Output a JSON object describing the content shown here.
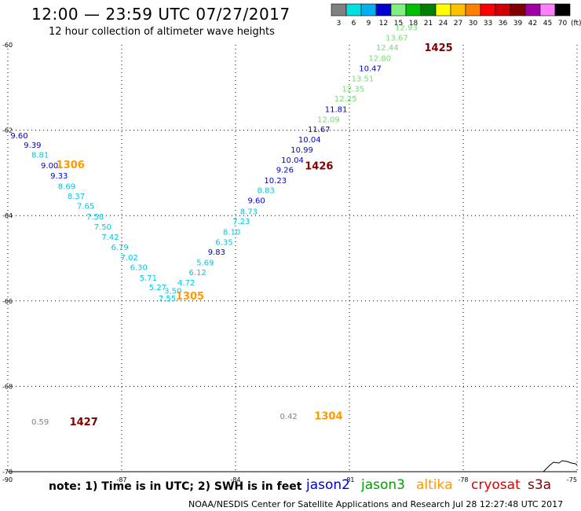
{
  "header": {
    "title": "12:00 — 23:59 UTC 07/27/2017",
    "subtitle": "12 hour collection of altimeter wave heights"
  },
  "color_scale": {
    "labels": [
      "3",
      "6",
      "9",
      "12",
      "15",
      "18",
      "21",
      "24",
      "27",
      "30",
      "33",
      "36",
      "39",
      "42",
      "45",
      "70"
    ],
    "colors": [
      "#808080",
      "#00e0e0",
      "#00b0f0",
      "#0000d0",
      "#80f080",
      "#00c000",
      "#008000",
      "#ffff00",
      "#ffc000",
      "#ff8000",
      "#ff0000",
      "#d00000",
      "#800000",
      "#a000a0",
      "#ff80ff",
      "#000000"
    ],
    "unit": "(ft)"
  },
  "footer": {
    "note": "note: 1) Time is in UTC; 2) SWH is in feet",
    "credit": "NOAA/NESDIS Center for Satellite Applications and Research    Jul 28 12:27:48 UTC 2017",
    "satellites": [
      {
        "name": "jason2",
        "color": "#0000d0"
      },
      {
        "name": "jason3",
        "color": "#00a000"
      },
      {
        "name": "altika",
        "color": "#ff9900"
      },
      {
        "name": "cryosat",
        "color": "#e00000"
      },
      {
        "name": "s3a",
        "color": "#800000"
      }
    ]
  },
  "chart_data": {
    "type": "scatter",
    "title": "12:00 — 23:59 UTC 07/27/2017",
    "subtitle": "12 hour collection of altimeter wave heights",
    "xlabel": "",
    "ylabel": "",
    "xlim": [
      -90,
      -75
    ],
    "ylim": [
      -70,
      -60
    ],
    "xticks": [
      -90,
      -87,
      -84,
      -81,
      -78,
      -75
    ],
    "yticks": [
      -60,
      -62,
      -64,
      -66,
      -68,
      -70
    ],
    "xtick_labels": [
      "-90",
      "-87",
      "-84",
      "-81",
      "-78",
      "-75"
    ],
    "ytick_labels": [
      "-60",
      "-62",
      "-64",
      "-66",
      "-68",
      "-70"
    ],
    "grid": true,
    "colors": {
      "gray": "#808080",
      "cyan": "#00c8e0",
      "lightblue": "#00a8f0",
      "blue": "#0000d0",
      "lightgreen": "#70e070",
      "darkred": "#800000",
      "orange": "#ff9900"
    },
    "points": [
      {
        "lon": -89.7,
        "lat": -62.14,
        "v": "9.60",
        "c": "blue"
      },
      {
        "lon": -89.35,
        "lat": -62.36,
        "v": "9.39",
        "c": "blue"
      },
      {
        "lon": -89.15,
        "lat": -62.59,
        "v": "8.81",
        "c": "cyan"
      },
      {
        "lon": -88.9,
        "lat": -62.84,
        "v": "9.00",
        "c": "blue"
      },
      {
        "lon": -88.65,
        "lat": -63.08,
        "v": "9.33",
        "c": "blue"
      },
      {
        "lon": -88.45,
        "lat": -63.32,
        "v": "8.69",
        "c": "cyan"
      },
      {
        "lon": -88.2,
        "lat": -63.55,
        "v": "8.37",
        "c": "cyan"
      },
      {
        "lon": -87.95,
        "lat": -63.78,
        "v": "7.65",
        "c": "cyan"
      },
      {
        "lon": -87.7,
        "lat": -64.03,
        "v": "7.58",
        "c": "cyan"
      },
      {
        "lon": -87.5,
        "lat": -64.27,
        "v": "7.50",
        "c": "cyan"
      },
      {
        "lon": -87.3,
        "lat": -64.51,
        "v": "7.42",
        "c": "cyan"
      },
      {
        "lon": -87.05,
        "lat": -64.75,
        "v": "6.79",
        "c": "cyan"
      },
      {
        "lon": -86.8,
        "lat": -64.99,
        "v": "7.02",
        "c": "cyan"
      },
      {
        "lon": -86.55,
        "lat": -65.22,
        "v": "6.30",
        "c": "cyan"
      },
      {
        "lon": -86.3,
        "lat": -65.47,
        "v": "5.71",
        "c": "cyan"
      },
      {
        "lon": -86.05,
        "lat": -65.69,
        "v": "5.27",
        "c": "cyan"
      },
      {
        "lon": -85.8,
        "lat": -65.95,
        "v": "7.55",
        "c": "cyan"
      },
      {
        "lon": -85.65,
        "lat": -65.77,
        "v": "3.50",
        "c": "cyan"
      },
      {
        "lon": -85.3,
        "lat": -65.58,
        "v": "4.72",
        "c": "cyan"
      },
      {
        "lon": -85.0,
        "lat": -65.34,
        "v": "6.12",
        "c": "cyan"
      },
      {
        "lon": -84.8,
        "lat": -65.11,
        "v": "5.69",
        "c": "cyan"
      },
      {
        "lon": -84.5,
        "lat": -64.86,
        "v": "9.83",
        "c": "blue"
      },
      {
        "lon": -84.3,
        "lat": -64.63,
        "v": "6.35",
        "c": "cyan"
      },
      {
        "lon": -84.1,
        "lat": -64.39,
        "v": "8.10",
        "c": "cyan"
      },
      {
        "lon": -83.85,
        "lat": -64.14,
        "v": "7.23",
        "c": "cyan"
      },
      {
        "lon": -83.65,
        "lat": -63.91,
        "v": "8.73",
        "c": "cyan"
      },
      {
        "lon": -83.45,
        "lat": -63.66,
        "v": "9.60",
        "c": "blue"
      },
      {
        "lon": -83.2,
        "lat": -63.42,
        "v": "8.83",
        "c": "cyan"
      },
      {
        "lon": -82.95,
        "lat": -63.19,
        "v": "10.23",
        "c": "blue"
      },
      {
        "lon": -82.7,
        "lat": -62.94,
        "v": "9.26",
        "c": "blue"
      },
      {
        "lon": -82.5,
        "lat": -62.71,
        "v": "10.04",
        "c": "blue"
      },
      {
        "lon": -82.25,
        "lat": -62.47,
        "v": "10.99",
        "c": "blue"
      },
      {
        "lon": -82.05,
        "lat": -62.23,
        "v": "10.04",
        "c": "blue"
      },
      {
        "lon": -81.8,
        "lat": -61.99,
        "v": "11.67",
        "c": "blue"
      },
      {
        "lon": -81.55,
        "lat": -61.76,
        "v": "12.09",
        "c": "lightgreen"
      },
      {
        "lon": -81.35,
        "lat": -61.52,
        "v": "11.81",
        "c": "blue"
      },
      {
        "lon": -81.1,
        "lat": -61.27,
        "v": "12.25",
        "c": "lightgreen"
      },
      {
        "lon": -80.9,
        "lat": -61.04,
        "v": "12.35",
        "c": "lightgreen"
      },
      {
        "lon": -80.65,
        "lat": -60.8,
        "v": "13.51",
        "c": "lightgreen"
      },
      {
        "lon": -80.45,
        "lat": -60.56,
        "v": "10.47",
        "c": "blue"
      },
      {
        "lon": -80.2,
        "lat": -60.32,
        "v": "12.80",
        "c": "lightgreen"
      },
      {
        "lon": -80.0,
        "lat": -60.07,
        "v": "12.44",
        "c": "lightgreen"
      },
      {
        "lon": -79.75,
        "lat": -59.84,
        "v": "13.67",
        "c": "lightgreen"
      },
      {
        "lon": -79.5,
        "lat": -59.6,
        "v": "12.93",
        "c": "lightgreen"
      },
      {
        "lon": -89.15,
        "lat": -68.84,
        "v": "0.59",
        "c": "gray"
      },
      {
        "lon": -82.6,
        "lat": -68.71,
        "v": "0.42",
        "c": "gray"
      }
    ],
    "time_labels": [
      {
        "lon": -88.35,
        "lat": -62.83,
        "t": "1306",
        "c": "orange"
      },
      {
        "lon": -78.65,
        "lat": -60.08,
        "t": "1425",
        "c": "darkred"
      },
      {
        "lon": -81.8,
        "lat": -62.85,
        "t": "1426",
        "c": "darkred"
      },
      {
        "lon": -85.2,
        "lat": -65.9,
        "t": "1305",
        "c": "orange"
      },
      {
        "lon": -88.0,
        "lat": -68.85,
        "t": "1427",
        "c": "darkred"
      },
      {
        "lon": -81.55,
        "lat": -68.71,
        "t": "1304",
        "c": "orange"
      }
    ]
  }
}
